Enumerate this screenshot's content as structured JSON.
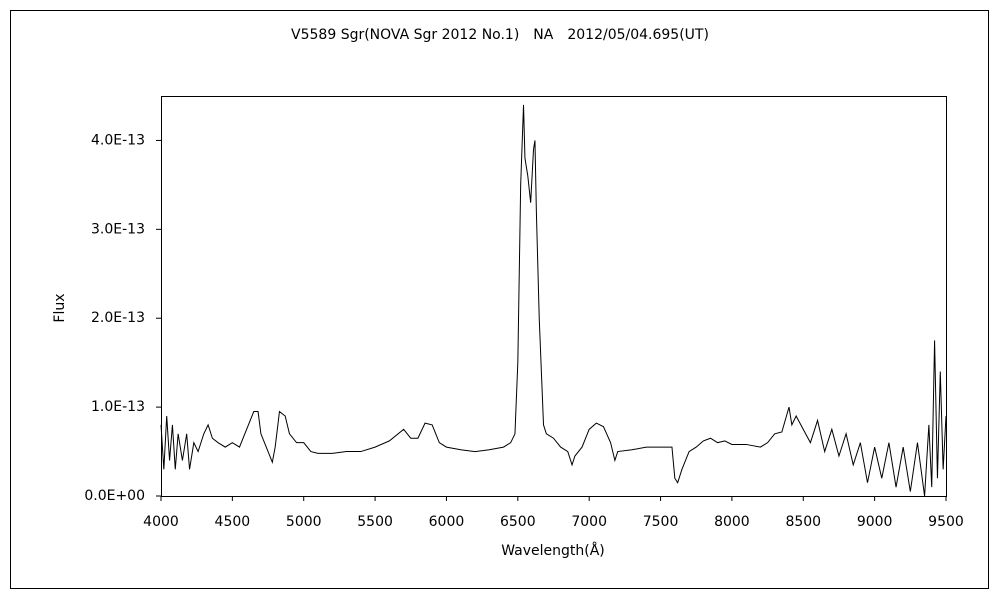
{
  "chart_data": {
    "type": "line",
    "title": "V5589 Sgr(NOVA Sgr 2012 No.1)　NA　2012/05/04.695(UT)",
    "xlabel": "Wavelength(Å)",
    "ylabel": "Flux",
    "color": "#000000",
    "x": [
      4000,
      4020,
      4040,
      4060,
      4080,
      4100,
      4120,
      4150,
      4180,
      4200,
      4230,
      4260,
      4300,
      4330,
      4360,
      4400,
      4450,
      4500,
      4550,
      4600,
      4650,
      4680,
      4700,
      4750,
      4780,
      4800,
      4830,
      4870,
      4900,
      4950,
      5000,
      5050,
      5100,
      5200,
      5300,
      5400,
      5500,
      5600,
      5700,
      5750,
      5800,
      5850,
      5900,
      5950,
      6000,
      6100,
      6200,
      6300,
      6400,
      6450,
      6480,
      6500,
      6520,
      6540,
      6550,
      6570,
      6590,
      6610,
      6620,
      6630,
      6650,
      6680,
      6700,
      6750,
      6800,
      6850,
      6880,
      6900,
      6950,
      7000,
      7050,
      7100,
      7150,
      7180,
      7200,
      7300,
      7400,
      7500,
      7580,
      7600,
      7620,
      7650,
      7700,
      7750,
      7800,
      7850,
      7900,
      7950,
      8000,
      8100,
      8200,
      8250,
      8300,
      8350,
      8400,
      8420,
      8450,
      8500,
      8550,
      8600,
      8650,
      8700,
      8750,
      8800,
      8850,
      8900,
      8950,
      9000,
      9050,
      9100,
      9150,
      9200,
      9250,
      9300,
      9350,
      9380,
      9400,
      9420,
      9440,
      9460,
      9480,
      9500
    ],
    "values": [
      8e-14,
      3e-14,
      9e-14,
      4e-14,
      8e-14,
      3e-14,
      7e-14,
      4e-14,
      7e-14,
      3e-14,
      6e-14,
      5e-14,
      7e-14,
      8e-14,
      6.5e-14,
      6e-14,
      5.5e-14,
      6e-14,
      5.5e-14,
      7.5e-14,
      9.5e-14,
      9.5e-14,
      7e-14,
      5e-14,
      3.8e-14,
      5.5e-14,
      9.5e-14,
      9e-14,
      7e-14,
      6e-14,
      6e-14,
      5e-14,
      4.8e-14,
      4.8e-14,
      5e-14,
      5e-14,
      5.5e-14,
      6.2e-14,
      7.5e-14,
      6.5e-14,
      6.5e-14,
      8.2e-14,
      8e-14,
      6e-14,
      5.5e-14,
      5.2e-14,
      5e-14,
      5.2e-14,
      5.5e-14,
      6e-14,
      7e-14,
      1.5e-13,
      3.5e-13,
      4.4e-13,
      3.8e-13,
      3.6e-13,
      3.3e-13,
      3.9e-13,
      4e-13,
      3.2e-13,
      2e-13,
      8e-14,
      7e-14,
      6.5e-14,
      5.5e-14,
      5e-14,
      3.5e-14,
      4.5e-14,
      5.5e-14,
      7.5e-14,
      8.2e-14,
      7.8e-14,
      6e-14,
      4e-14,
      5e-14,
      5.2e-14,
      5.5e-14,
      5.5e-14,
      5.5e-14,
      2e-14,
      1.5e-14,
      3e-14,
      5e-14,
      5.5e-14,
      6.2e-14,
      6.5e-14,
      6e-14,
      6.2e-14,
      5.8e-14,
      5.8e-14,
      5.5e-14,
      6e-14,
      7e-14,
      7.2e-14,
      1e-13,
      8e-14,
      9e-14,
      7.5e-14,
      6e-14,
      8.5e-14,
      5e-14,
      7.5e-14,
      4.5e-14,
      7e-14,
      3.5e-14,
      6e-14,
      1.5e-14,
      5.5e-14,
      2e-14,
      6e-14,
      1e-14,
      5.5e-14,
      5e-15,
      6e-14,
      0,
      8e-14,
      1e-14,
      1.75e-13,
      2e-14,
      1.4e-13,
      3e-14,
      9e-14
    ],
    "xlim": [
      4000,
      9500
    ],
    "xticks": [
      4000,
      4500,
      5000,
      5500,
      6000,
      6500,
      7000,
      7500,
      8000,
      8500,
      9000,
      9500
    ],
    "ylim": [
      0,
      4.5e-13
    ],
    "yticks": [
      {
        "value": 0,
        "label": "0.0E+00"
      },
      {
        "value": 1e-13,
        "label": "1.0E-13"
      },
      {
        "value": 2e-13,
        "label": "2.0E-13"
      },
      {
        "value": 3e-13,
        "label": "3.0E-13"
      },
      {
        "value": 4e-13,
        "label": "4.0E-13"
      }
    ]
  }
}
